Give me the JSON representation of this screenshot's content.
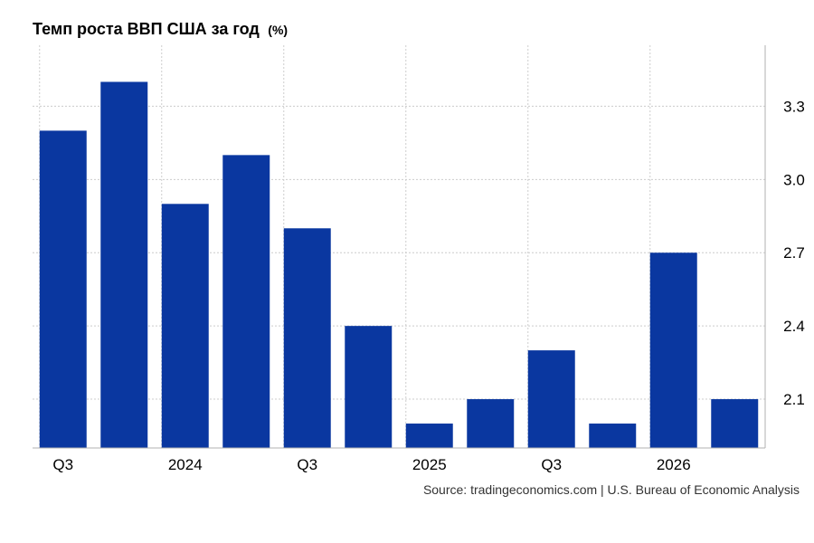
{
  "chart_data": {
    "type": "bar",
    "title": "Темп роста ВВП США за год",
    "unit": "(%)",
    "categories": [
      "Q3",
      "",
      "2024",
      "",
      "Q3",
      "",
      "2025",
      "",
      "Q3",
      "",
      "2026",
      ""
    ],
    "values": [
      3.2,
      3.4,
      2.9,
      3.1,
      2.8,
      2.4,
      2.0,
      2.1,
      2.3,
      2.0,
      2.7,
      2.1
    ],
    "x_tick_labels": [
      {
        "index": 0,
        "label": "Q3"
      },
      {
        "index": 2,
        "label": "2024"
      },
      {
        "index": 4,
        "label": "Q3"
      },
      {
        "index": 6,
        "label": "2025"
      },
      {
        "index": 8,
        "label": "Q3"
      },
      {
        "index": 10,
        "label": "2026"
      }
    ],
    "y_ticks": [
      2.1,
      2.4,
      2.7,
      3.0,
      3.3
    ],
    "y_tick_labels": [
      "2.1",
      "2.4",
      "2.7",
      "3.0",
      "3.3"
    ],
    "ylim": [
      1.9,
      3.55
    ],
    "y_axis_side": "right",
    "grid": true,
    "legend": "none",
    "bar_color": "#0a37a0",
    "source": "Source: tradingeconomics.com | U.S. Bureau of Economic Analysis"
  }
}
